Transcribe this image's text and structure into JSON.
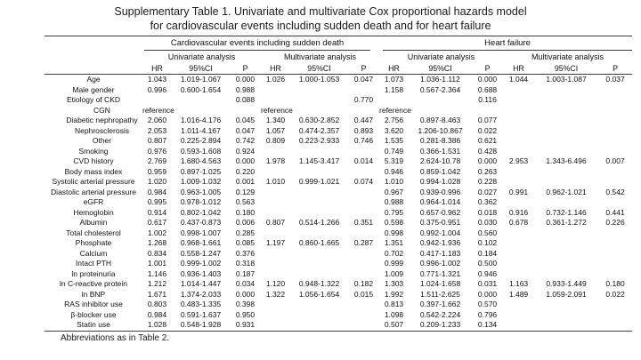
{
  "page": {
    "title_line1": "Supplementary Table 1. Univariate and multivariate Cox proportional hazards model",
    "title_line2": "for cardiovascular events including sudden death and for heart failure",
    "footnote": "Abbreviations as in Table 2."
  },
  "table": {
    "groups": [
      "Cardiovascular events including sudden death",
      "Heart failure"
    ],
    "subgroups": [
      "Univariate analysis",
      "Multivariate analysis"
    ],
    "col_headers": [
      "HR",
      "95%CI",
      "P"
    ],
    "rows": [
      {
        "label": "Age",
        "indent": false,
        "cells": [
          "1.043",
          "1.019-1.067",
          "0.000",
          "1.026",
          "1.000-1.053",
          "0.047",
          "1.073",
          "1.036-1.112",
          "0.000",
          "1.044",
          "1.003-1.087",
          "0.037"
        ]
      },
      {
        "label": "Male gender",
        "indent": false,
        "cells": [
          "0.996",
          "0.600-1.654",
          "0.988",
          "",
          "",
          "",
          "1.158",
          "0.567-2.364",
          "0.688",
          "",
          "",
          ""
        ]
      },
      {
        "label": "Etiology of CKD",
        "indent": false,
        "cells": [
          "",
          "",
          "0.088",
          "",
          "",
          "0.770",
          "",
          "",
          "0.116",
          "",
          "",
          ""
        ]
      },
      {
        "label": "CGN",
        "indent": true,
        "cells": [
          "reference",
          "",
          "",
          "reference",
          "",
          "",
          "reference",
          "",
          "",
          "",
          "",
          ""
        ]
      },
      {
        "label": "Diabetic nephropathy",
        "indent": true,
        "cells": [
          "2.060",
          "1.016-4.176",
          "0.045",
          "1.340",
          "0.630-2.852",
          "0.447",
          "2.756",
          "0.897-8.463",
          "0.077",
          "",
          "",
          ""
        ]
      },
      {
        "label": "Nephrosclerosis",
        "indent": true,
        "cells": [
          "2.053",
          "1.011-4.167",
          "0.047",
          "1.057",
          "0.474-2.357",
          "0.893",
          "3.620",
          "1.206-10.867",
          "0.022",
          "",
          "",
          ""
        ]
      },
      {
        "label": "Other",
        "indent": true,
        "cells": [
          "0.807",
          "0.225-2.894",
          "0.742",
          "0.809",
          "0.223-2.933",
          "0.746",
          "1.535",
          "0.281-8.386",
          "0.621",
          "",
          "",
          ""
        ]
      },
      {
        "label": "Smoking",
        "indent": false,
        "cells": [
          "0.976",
          "0.593-1.608",
          "0.924",
          "",
          "",
          "",
          "0.749",
          "0.366-1.531",
          "0.428",
          "",
          "",
          ""
        ]
      },
      {
        "label": "CVD history",
        "indent": false,
        "cells": [
          "2.769",
          "1.680-4.563",
          "0.000",
          "1.978",
          "1.145-3.417",
          "0.014",
          "5.319",
          "2.624-10.78",
          "0.000",
          "2.953",
          "1.343-6.496",
          "0.007"
        ]
      },
      {
        "label": "Body mass index",
        "indent": false,
        "cells": [
          "0.959",
          "0.897-1.025",
          "0.220",
          "",
          "",
          "",
          "0.946",
          "0.859-1.042",
          "0.263",
          "",
          "",
          ""
        ]
      },
      {
        "label": "Systolic arterial pressure",
        "indent": false,
        "cells": [
          "1.020",
          "1.009-1.032",
          "0.001",
          "1.010",
          "0.999-1.021",
          "0.074",
          "1.010",
          "0.994-1.028",
          "0.228",
          "",
          "",
          ""
        ]
      },
      {
        "label": "Diastolic arterial pressure",
        "indent": false,
        "cells": [
          "0.984",
          "0.963-1.005",
          "0.129",
          "",
          "",
          "",
          "0.967",
          "0.939-0.996",
          "0.027",
          "0.991",
          "0.962-1.021",
          "0.542"
        ]
      },
      {
        "label": "eGFR",
        "indent": false,
        "cells": [
          "0.995",
          "0.978-1.012",
          "0.563",
          "",
          "",
          "",
          "0.988",
          "0.964-1.014",
          "0.362",
          "",
          "",
          ""
        ]
      },
      {
        "label": "Hemoglobin",
        "indent": false,
        "cells": [
          "0.914",
          "0.802-1.042",
          "0.180",
          "",
          "",
          "",
          "0.795",
          "0.657-0.962",
          "0.018",
          "0.916",
          "0.732-1.146",
          "0.441"
        ]
      },
      {
        "label": "Albumin",
        "indent": false,
        "cells": [
          "0.617",
          "0.437-0.873",
          "0.006",
          "0.807",
          "0.514-1.266",
          "0.351",
          "0.598",
          "0.375-0.951",
          "0.030",
          "0.678",
          "0.361-1.272",
          "0.226"
        ]
      },
      {
        "label": "Total cholesterol",
        "indent": false,
        "cells": [
          "1.002",
          "0.998-1.007",
          "0.285",
          "",
          "",
          "",
          "0.998",
          "0.992-1.004",
          "0.560",
          "",
          "",
          ""
        ]
      },
      {
        "label": "Phosphate",
        "indent": false,
        "cells": [
          "1.268",
          "0.968-1.661",
          "0.085",
          "1.197",
          "0.860-1.665",
          "0.287",
          "1.351",
          "0.942-1.936",
          "0.102",
          "",
          "",
          ""
        ]
      },
      {
        "label": "Calcium",
        "indent": false,
        "cells": [
          "0.834",
          "0.558-1.247",
          "0.376",
          "",
          "",
          "",
          "0.702",
          "0.417-1.183",
          "0.184",
          "",
          "",
          ""
        ]
      },
      {
        "label": "Intact PTH",
        "indent": false,
        "cells": [
          "1.001",
          "0.999-1.002",
          "0.318",
          "",
          "",
          "",
          "0.999",
          "0.996-1.002",
          "0.500",
          "",
          "",
          ""
        ]
      },
      {
        "label": "ln proteinuria",
        "indent": false,
        "cells": [
          "1.146",
          "0.936-1.403",
          "0.187",
          "",
          "",
          "",
          "1.009",
          "0.771-1.321",
          "0.946",
          "",
          "",
          ""
        ]
      },
      {
        "label": "ln C-reactive protein",
        "indent": false,
        "cells": [
          "1.212",
          "1.014-1.447",
          "0.034",
          "1.120",
          "0.948-1.322",
          "0.182",
          "1.303",
          "1.024-1.658",
          "0.031",
          "1.163",
          "0.933-1.449",
          "0.180"
        ]
      },
      {
        "label": "ln BNP",
        "indent": false,
        "cells": [
          "1.671",
          "1.374-2.033",
          "0.000",
          "1.322",
          "1.056-1.654",
          "0.015",
          "1.992",
          "1.511-2.625",
          "0.000",
          "1.489",
          "1.059-2.091",
          "0.022"
        ]
      },
      {
        "label": "RAS inhibitor use",
        "indent": false,
        "cells": [
          "0.803",
          "0.483-1.335",
          "0.398",
          "",
          "",
          "",
          "0.813",
          "0.397-1.662",
          "0.570",
          "",
          "",
          ""
        ]
      },
      {
        "label": "β-blocker use",
        "indent": false,
        "cells": [
          "0.984",
          "0.591-1.637",
          "0.950",
          "",
          "",
          "",
          "1.098",
          "0.542-2.224",
          "0.796",
          "",
          "",
          ""
        ]
      },
      {
        "label": "Statin use",
        "indent": false,
        "cells": [
          "1.028",
          "0.548-1.928",
          "0.931",
          "",
          "",
          "",
          "0.507",
          "0.209-1.233",
          "0.134",
          "",
          "",
          ""
        ]
      }
    ]
  }
}
